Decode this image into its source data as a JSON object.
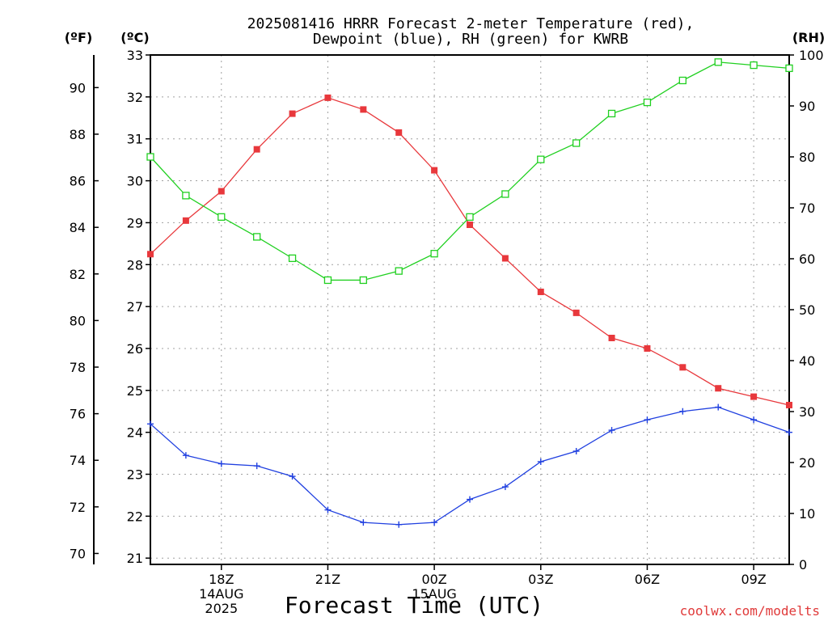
{
  "chart_data": {
    "type": "line",
    "title_lines": [
      "2025081416 HRRR Forecast 2-meter Temperature (red),",
      "Dewpoint (blue), RH (green) for KWRB"
    ],
    "units": {
      "fahrenheit": "(ºF)",
      "celsius": "(ºC)",
      "rh": "(RH)"
    },
    "xlabel": "Forecast Time (UTC)",
    "credit": "coolwx.com/modelts",
    "x_hours": [
      16,
      17,
      18,
      19,
      20,
      21,
      22,
      23,
      24,
      25,
      26,
      27,
      28,
      29,
      30,
      31,
      32,
      33,
      34
    ],
    "x_range": [
      16,
      34
    ],
    "x_ticks": [
      {
        "hour": 18,
        "lines": [
          "18Z",
          "14AUG",
          "2025"
        ]
      },
      {
        "hour": 21,
        "lines": [
          "21Z"
        ]
      },
      {
        "hour": 24,
        "lines": [
          "00Z",
          "15AUG"
        ]
      },
      {
        "hour": 27,
        "lines": [
          "03Z"
        ]
      },
      {
        "hour": 30,
        "lines": [
          "06Z"
        ]
      },
      {
        "hour": 33,
        "lines": [
          "09Z"
        ]
      }
    ],
    "celsius_axis": {
      "range": [
        20.85,
        33
      ],
      "ticks": [
        21,
        22,
        23,
        24,
        25,
        26,
        27,
        28,
        29,
        30,
        31,
        32,
        33
      ]
    },
    "fahrenheit_ticks": [
      70,
      72,
      74,
      76,
      78,
      80,
      82,
      84,
      86,
      88,
      90
    ],
    "rh_axis": {
      "range": [
        0,
        100
      ],
      "ticks": [
        0,
        10,
        20,
        30,
        40,
        50,
        60,
        70,
        80,
        90,
        100
      ]
    },
    "grid": true,
    "series": [
      {
        "color": "#e8383c",
        "axis": "celsius",
        "marker": "square-filled",
        "values": [
          28.25,
          29.05,
          29.75,
          30.75,
          31.6,
          31.98,
          31.7,
          31.15,
          30.25,
          28.95,
          28.15,
          27.35,
          26.85,
          26.25,
          26.0,
          25.55,
          25.05,
          24.85,
          24.65
        ]
      },
      {
        "color": "#2040e0",
        "axis": "celsius",
        "marker": "plus",
        "values": [
          24.2,
          23.45,
          23.25,
          23.2,
          22.95,
          22.15,
          21.85,
          21.8,
          21.85,
          22.4,
          22.7,
          23.3,
          23.55,
          24.05,
          24.3,
          24.5,
          24.6,
          24.3,
          24.0
        ]
      },
      {
        "color": "#20d020",
        "axis": "rh",
        "marker": "square-open",
        "values": [
          80,
          72.4,
          68.2,
          64.3,
          60.1,
          55.8,
          55.8,
          57.6,
          61.0,
          68.2,
          72.7,
          79.5,
          82.7,
          88.5,
          90.7,
          95.0,
          98.6,
          98.0,
          97.4
        ]
      }
    ]
  }
}
